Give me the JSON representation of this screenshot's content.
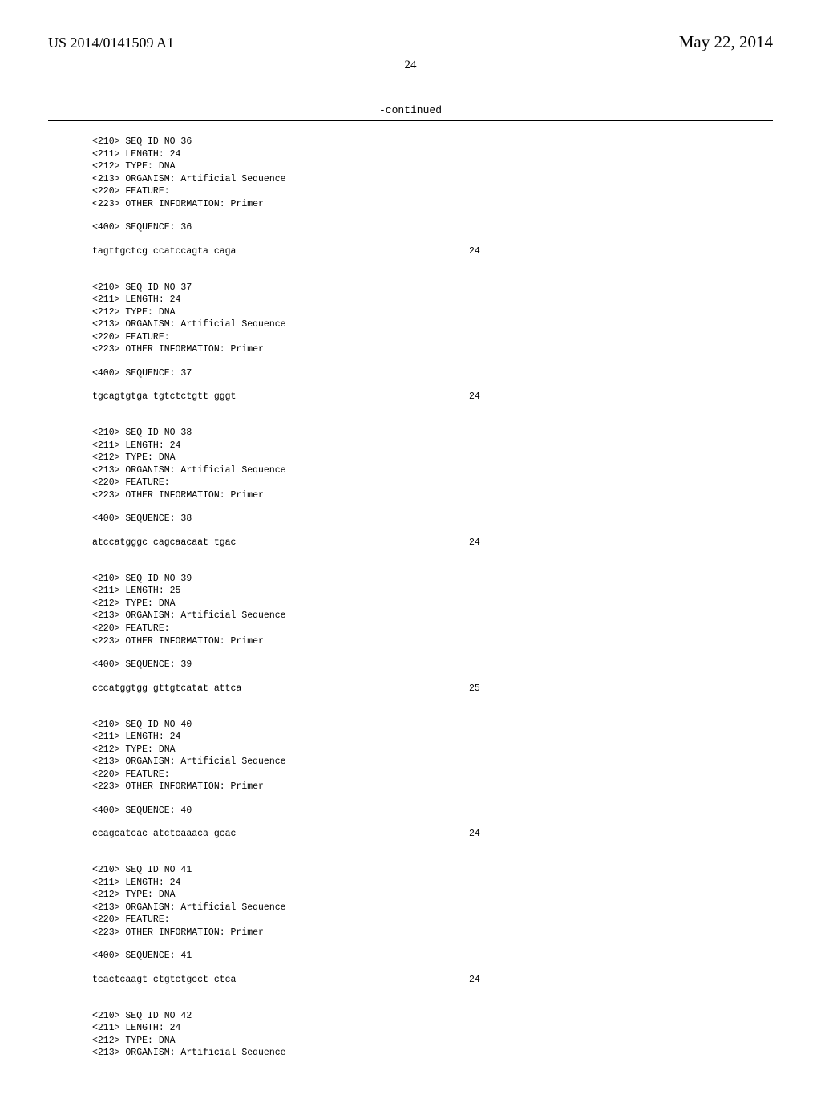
{
  "header": {
    "pub_number": "US 2014/0141509 A1",
    "pub_date": "May 22, 2014"
  },
  "page_number": "24",
  "continued_label": "-continued",
  "sequences": [
    {
      "id": "36",
      "length": "24",
      "type": "DNA",
      "organism": "Artificial Sequence",
      "feature": "",
      "other_info": "Primer",
      "sequence_text": "tagttgctcg ccatccagta caga",
      "sequence_num": "24"
    },
    {
      "id": "37",
      "length": "24",
      "type": "DNA",
      "organism": "Artificial Sequence",
      "feature": "",
      "other_info": "Primer",
      "sequence_text": "tgcagtgtga tgtctctgtt gggt",
      "sequence_num": "24"
    },
    {
      "id": "38",
      "length": "24",
      "type": "DNA",
      "organism": "Artificial Sequence",
      "feature": "",
      "other_info": "Primer",
      "sequence_text": "atccatgggc cagcaacaat tgac",
      "sequence_num": "24"
    },
    {
      "id": "39",
      "length": "25",
      "type": "DNA",
      "organism": "Artificial Sequence",
      "feature": "",
      "other_info": "Primer",
      "sequence_text": "cccatggtgg gttgtcatat attca",
      "sequence_num": "25"
    },
    {
      "id": "40",
      "length": "24",
      "type": "DNA",
      "organism": "Artificial Sequence",
      "feature": "",
      "other_info": "Primer",
      "sequence_text": "ccagcatcac atctcaaaca gcac",
      "sequence_num": "24"
    },
    {
      "id": "41",
      "length": "24",
      "type": "DNA",
      "organism": "Artificial Sequence",
      "feature": "",
      "other_info": "Primer",
      "sequence_text": "tcactcaagt ctgtctgcct ctca",
      "sequence_num": "24"
    }
  ],
  "last_block": {
    "id": "42",
    "length": "24",
    "type": "DNA",
    "organism": "Artificial Sequence"
  },
  "labels": {
    "seq_id": "<210> SEQ ID NO ",
    "length": "<211> LENGTH: ",
    "type": "<212> TYPE: ",
    "organism": "<213> ORGANISM: ",
    "feature": "<220> FEATURE:",
    "other_info": "<223> OTHER INFORMATION: ",
    "sequence": "<400> SEQUENCE: "
  }
}
